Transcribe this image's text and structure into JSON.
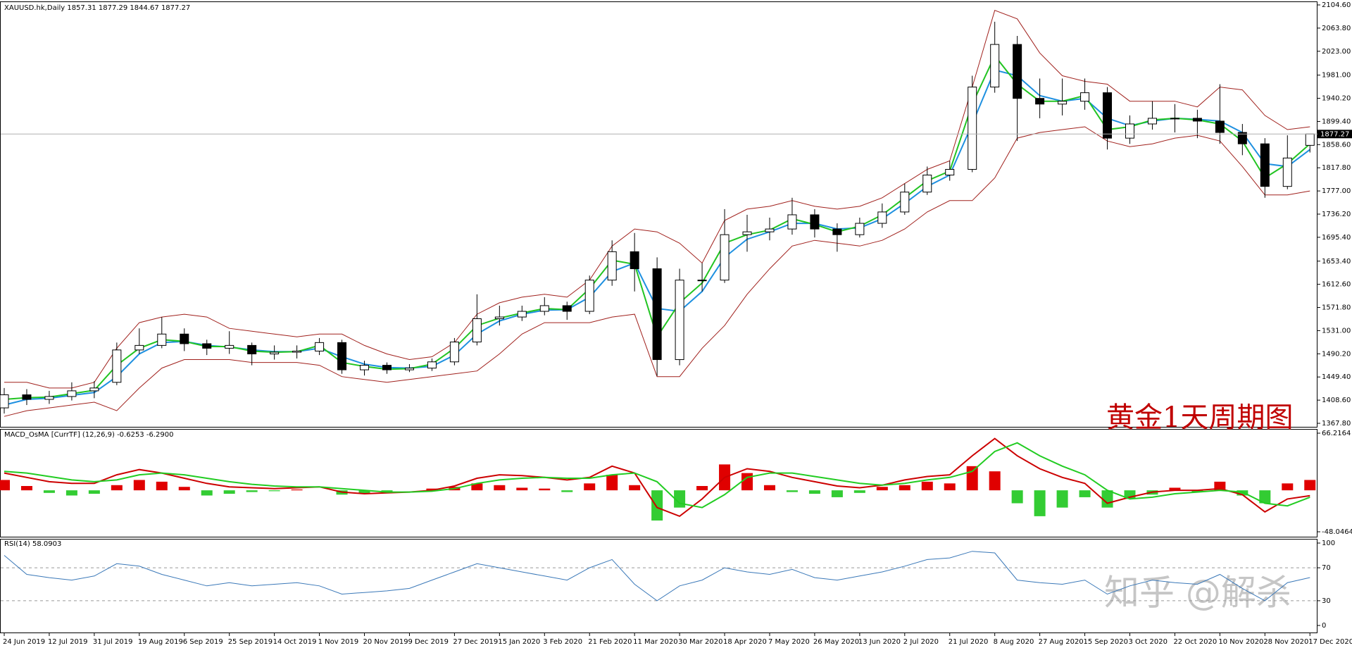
{
  "header": "XAUUSD.hk,Daily  1857.31 1877.29 1844.67 1877.27",
  "annotation": "黄金1天周期图",
  "watermark": "知乎 @解杀",
  "chart_data": [
    {
      "type": "candlestick",
      "last_price": 1877.27,
      "categories": [
        "24 Jun 2019",
        null,
        "12 Jul 2019",
        null,
        "31 Jul 2019",
        null,
        "19 Aug 2019",
        null,
        "6 Sep 2019",
        null,
        "25 Sep 2019",
        null,
        "14 Oct 2019",
        null,
        "1 Nov 2019",
        null,
        "20 Nov 2019",
        null,
        "9 Dec 2019",
        null,
        "27 Dec 2019",
        null,
        "15 Jan 2020",
        null,
        "3 Feb 2020",
        null,
        "21 Feb 2020",
        null,
        "11 Mar 2020",
        null,
        "30 Mar 2020",
        null,
        "18 Apr 2020",
        null,
        "7 May 2020",
        null,
        "26 May 2020",
        null,
        "13 Jun 2020",
        null,
        "2 Jul 2020",
        null,
        "21 Jul 2020",
        null,
        "8 Aug 2020",
        null,
        "27 Aug 2020",
        null,
        "15 Sep 2020",
        null,
        "3 Oct 2020",
        null,
        "22 Oct 2020",
        null,
        "10 Nov 2020",
        null,
        "28 Nov 2020",
        null,
        "17 Dec 2020"
      ],
      "open": [
        1395,
        1418,
        1410,
        1415,
        1425,
        1440,
        1497,
        1505,
        1525,
        1508,
        1500,
        1505,
        1490,
        1493,
        1495,
        1510,
        1462,
        1470,
        1462,
        1465,
        1476,
        1511,
        1552,
        1555,
        1565,
        1575,
        1565,
        1620,
        1670,
        1640,
        1480,
        1620,
        1620,
        1700,
        1705,
        1710,
        1735,
        1710,
        1700,
        1720,
        1740,
        1775,
        1805,
        1815,
        1960,
        2035,
        1940,
        1930,
        1935,
        1950,
        1870,
        1895,
        1905,
        1905,
        1900,
        1880,
        1860,
        1785,
        1857.31
      ],
      "high": [
        1430,
        1428,
        1425,
        1440,
        1442,
        1510,
        1535,
        1555,
        1535,
        1515,
        1530,
        1510,
        1505,
        1505,
        1518,
        1515,
        1478,
        1475,
        1472,
        1482,
        1518,
        1595,
        1575,
        1575,
        1590,
        1582,
        1628,
        1690,
        1703,
        1660,
        1640,
        1650,
        1745,
        1735,
        1730,
        1765,
        1745,
        1720,
        1730,
        1755,
        1790,
        1820,
        1830,
        1980,
        2075,
        2050,
        1975,
        1975,
        1975,
        1960,
        1910,
        1935,
        1930,
        1920,
        1965,
        1895,
        1870,
        1875,
        1877.29
      ],
      "low": [
        1385,
        1400,
        1402,
        1408,
        1412,
        1435,
        1490,
        1500,
        1495,
        1488,
        1490,
        1470,
        1480,
        1482,
        1488,
        1455,
        1452,
        1455,
        1458,
        1460,
        1470,
        1505,
        1540,
        1548,
        1558,
        1550,
        1560,
        1610,
        1600,
        1451,
        1470,
        1600,
        1615,
        1670,
        1690,
        1700,
        1695,
        1670,
        1695,
        1712,
        1735,
        1770,
        1795,
        1810,
        1950,
        1865,
        1905,
        1910,
        1920,
        1850,
        1860,
        1885,
        1880,
        1870,
        1860,
        1840,
        1765,
        1780,
        1844.67
      ],
      "close": [
        1418,
        1410,
        1415,
        1425,
        1430,
        1497,
        1505,
        1525,
        1508,
        1500,
        1505,
        1490,
        1493,
        1495,
        1510,
        1462,
        1470,
        1462,
        1465,
        1476,
        1511,
        1552,
        1555,
        1565,
        1575,
        1565,
        1620,
        1670,
        1640,
        1480,
        1620,
        1620,
        1700,
        1705,
        1710,
        1735,
        1710,
        1700,
        1720,
        1740,
        1775,
        1805,
        1815,
        1960,
        2035,
        1940,
        1930,
        1935,
        1950,
        1870,
        1895,
        1905,
        1905,
        1900,
        1880,
        1860,
        1785,
        1835,
        1877.27
      ],
      "lines": [
        {
          "color": "#a0201c",
          "values": [
            1440,
            1440,
            1430,
            1430,
            1440,
            1500,
            1545,
            1555,
            1560,
            1555,
            1535,
            1530,
            1525,
            1520,
            1525,
            1525,
            1505,
            1490,
            1480,
            1485,
            1510,
            1560,
            1580,
            1590,
            1595,
            1590,
            1620,
            1680,
            1710,
            1705,
            1685,
            1650,
            1725,
            1745,
            1750,
            1760,
            1750,
            1745,
            1750,
            1765,
            1790,
            1815,
            1830,
            1960,
            2095,
            2080,
            2020,
            1980,
            1970,
            1965,
            1935,
            1935,
            1935,
            1925,
            1960,
            1955,
            1910,
            1885,
            1890
          ]
        },
        {
          "color": "#a0201c",
          "values": [
            1380,
            1390,
            1395,
            1400,
            1405,
            1390,
            1430,
            1465,
            1480,
            1480,
            1480,
            1475,
            1475,
            1475,
            1470,
            1450,
            1445,
            1440,
            1445,
            1450,
            1455,
            1460,
            1490,
            1525,
            1545,
            1545,
            1545,
            1555,
            1560,
            1450,
            1450,
            1500,
            1540,
            1595,
            1640,
            1680,
            1690,
            1685,
            1680,
            1690,
            1710,
            1740,
            1760,
            1760,
            1800,
            1870,
            1880,
            1885,
            1890,
            1865,
            1855,
            1860,
            1870,
            1875,
            1865,
            1820,
            1770,
            1770,
            1777
          ]
        },
        {
          "color": "#1e90e0",
          "values": [
            1400,
            1410,
            1412,
            1417,
            1422,
            1450,
            1490,
            1510,
            1512,
            1505,
            1502,
            1497,
            1494,
            1494,
            1500,
            1485,
            1472,
            1466,
            1465,
            1468,
            1488,
            1525,
            1548,
            1560,
            1567,
            1568,
            1590,
            1635,
            1650,
            1570,
            1565,
            1600,
            1660,
            1692,
            1705,
            1720,
            1720,
            1710,
            1712,
            1728,
            1755,
            1785,
            1805,
            1895,
            1990,
            1980,
            1945,
            1935,
            1940,
            1905,
            1892,
            1900,
            1905,
            1903,
            1900,
            1880,
            1825,
            1820,
            1850
          ]
        },
        {
          "color": "#22c422",
          "values": [
            1410,
            1413,
            1414,
            1420,
            1426,
            1470,
            1500,
            1515,
            1512,
            1503,
            1503,
            1495,
            1493,
            1494,
            1505,
            1475,
            1468,
            1463,
            1464,
            1472,
            1500,
            1540,
            1553,
            1562,
            1570,
            1568,
            1605,
            1655,
            1648,
            1520,
            1580,
            1615,
            1685,
            1700,
            1708,
            1728,
            1718,
            1705,
            1715,
            1735,
            1765,
            1795,
            1812,
            1930,
            2015,
            1965,
            1935,
            1935,
            1945,
            1885,
            1890,
            1902,
            1905,
            1902,
            1895,
            1865,
            1800,
            1825,
            1860
          ]
        }
      ],
      "ylim": [
        1367.8,
        2104.6
      ],
      "yticks": [
        {
          "value": 1367.8,
          "label": "1367.80"
        },
        {
          "value": 1408.6,
          "label": "1408.60"
        },
        {
          "value": 1449.4,
          "label": "1449.40"
        },
        {
          "value": 1490.2,
          "label": "1490.20"
        },
        {
          "value": 1531,
          "label": "1531.00"
        },
        {
          "value": 1571.8,
          "label": "1571.80"
        },
        {
          "value": 1612.6,
          "label": "1612.60"
        },
        {
          "value": 1653.4,
          "label": "1653.40"
        },
        {
          "value": 1695.4,
          "label": "1695.40"
        },
        {
          "value": 1736.2,
          "label": "1736.20"
        },
        {
          "value": 1777,
          "label": "1777.00"
        },
        {
          "value": 1817.8,
          "label": "1817.80"
        },
        {
          "value": 1858.6,
          "label": "1858.60"
        },
        {
          "value": 1899.4,
          "label": "1899.40"
        },
        {
          "value": 1940.2,
          "label": "1940.20"
        },
        {
          "value": 1981,
          "label": "1981.00"
        },
        {
          "value": 2023,
          "label": "2023.00"
        },
        {
          "value": 2063.8,
          "label": "2063.80"
        },
        {
          "value": 2104.6,
          "label": "2104.60"
        }
      ]
    },
    {
      "type": "macd",
      "title": "MACD_OsMA [CurrTF] (12,26,9) -0.6253 -6.2900",
      "histogram": [
        12,
        5,
        -3,
        -6,
        -4,
        6,
        12,
        10,
        4,
        -6,
        -4,
        -2,
        -1,
        1,
        0,
        -5,
        -4,
        -2,
        0,
        2,
        4,
        8,
        6,
        3,
        2,
        -2,
        8,
        18,
        6,
        -35,
        -20,
        5,
        30,
        20,
        6,
        -2,
        -4,
        -8,
        -3,
        4,
        6,
        10,
        8,
        28,
        22,
        -15,
        -30,
        -20,
        -8,
        -20,
        -10,
        -5,
        3,
        -2,
        10,
        -6,
        -15,
        8,
        12
      ],
      "hist_colors": [
        "#e00000",
        "#33cc33"
      ],
      "lines": [
        {
          "color": "#cc0000",
          "values": [
            20,
            15,
            10,
            8,
            8,
            18,
            24,
            20,
            14,
            8,
            4,
            3,
            2,
            3,
            4,
            -2,
            -4,
            -3,
            -2,
            0,
            5,
            14,
            18,
            17,
            15,
            12,
            15,
            28,
            20,
            -20,
            -30,
            -10,
            15,
            25,
            22,
            15,
            10,
            5,
            3,
            6,
            12,
            16,
            18,
            40,
            60,
            40,
            25,
            15,
            8,
            -15,
            -8,
            -2,
            0,
            0,
            2,
            -5,
            -25,
            -10,
            -6.29
          ]
        },
        {
          "color": "#22cc22",
          "values": [
            22,
            20,
            16,
            12,
            10,
            12,
            18,
            20,
            18,
            14,
            10,
            7,
            5,
            4,
            4,
            2,
            0,
            -2,
            -2,
            -1,
            2,
            8,
            12,
            14,
            15,
            14,
            14,
            18,
            20,
            10,
            -15,
            -20,
            -5,
            15,
            20,
            20,
            16,
            12,
            8,
            6,
            8,
            12,
            15,
            22,
            45,
            55,
            40,
            28,
            18,
            0,
            -10,
            -8,
            -4,
            -2,
            0,
            -2,
            -15,
            -18,
            -8
          ]
        }
      ],
      "ylim": [
        -48.0464,
        66.2164
      ],
      "yticks": [
        -48.0464,
        66.2164
      ]
    },
    {
      "type": "rsi",
      "title": "RSI(14) 58.0903",
      "color": "#3a78b8",
      "values": [
        85,
        62,
        58,
        55,
        60,
        75,
        72,
        62,
        55,
        48,
        52,
        48,
        50,
        52,
        48,
        38,
        40,
        42,
        45,
        55,
        65,
        75,
        70,
        65,
        60,
        55,
        70,
        80,
        50,
        30,
        48,
        55,
        70,
        65,
        62,
        68,
        58,
        55,
        60,
        65,
        72,
        80,
        82,
        90,
        88,
        55,
        52,
        50,
        55,
        38,
        48,
        55,
        52,
        50,
        62,
        45,
        30,
        52,
        58.09
      ],
      "ylim": [
        0,
        100
      ],
      "yticks": [
        0,
        30,
        70,
        100
      ]
    }
  ]
}
